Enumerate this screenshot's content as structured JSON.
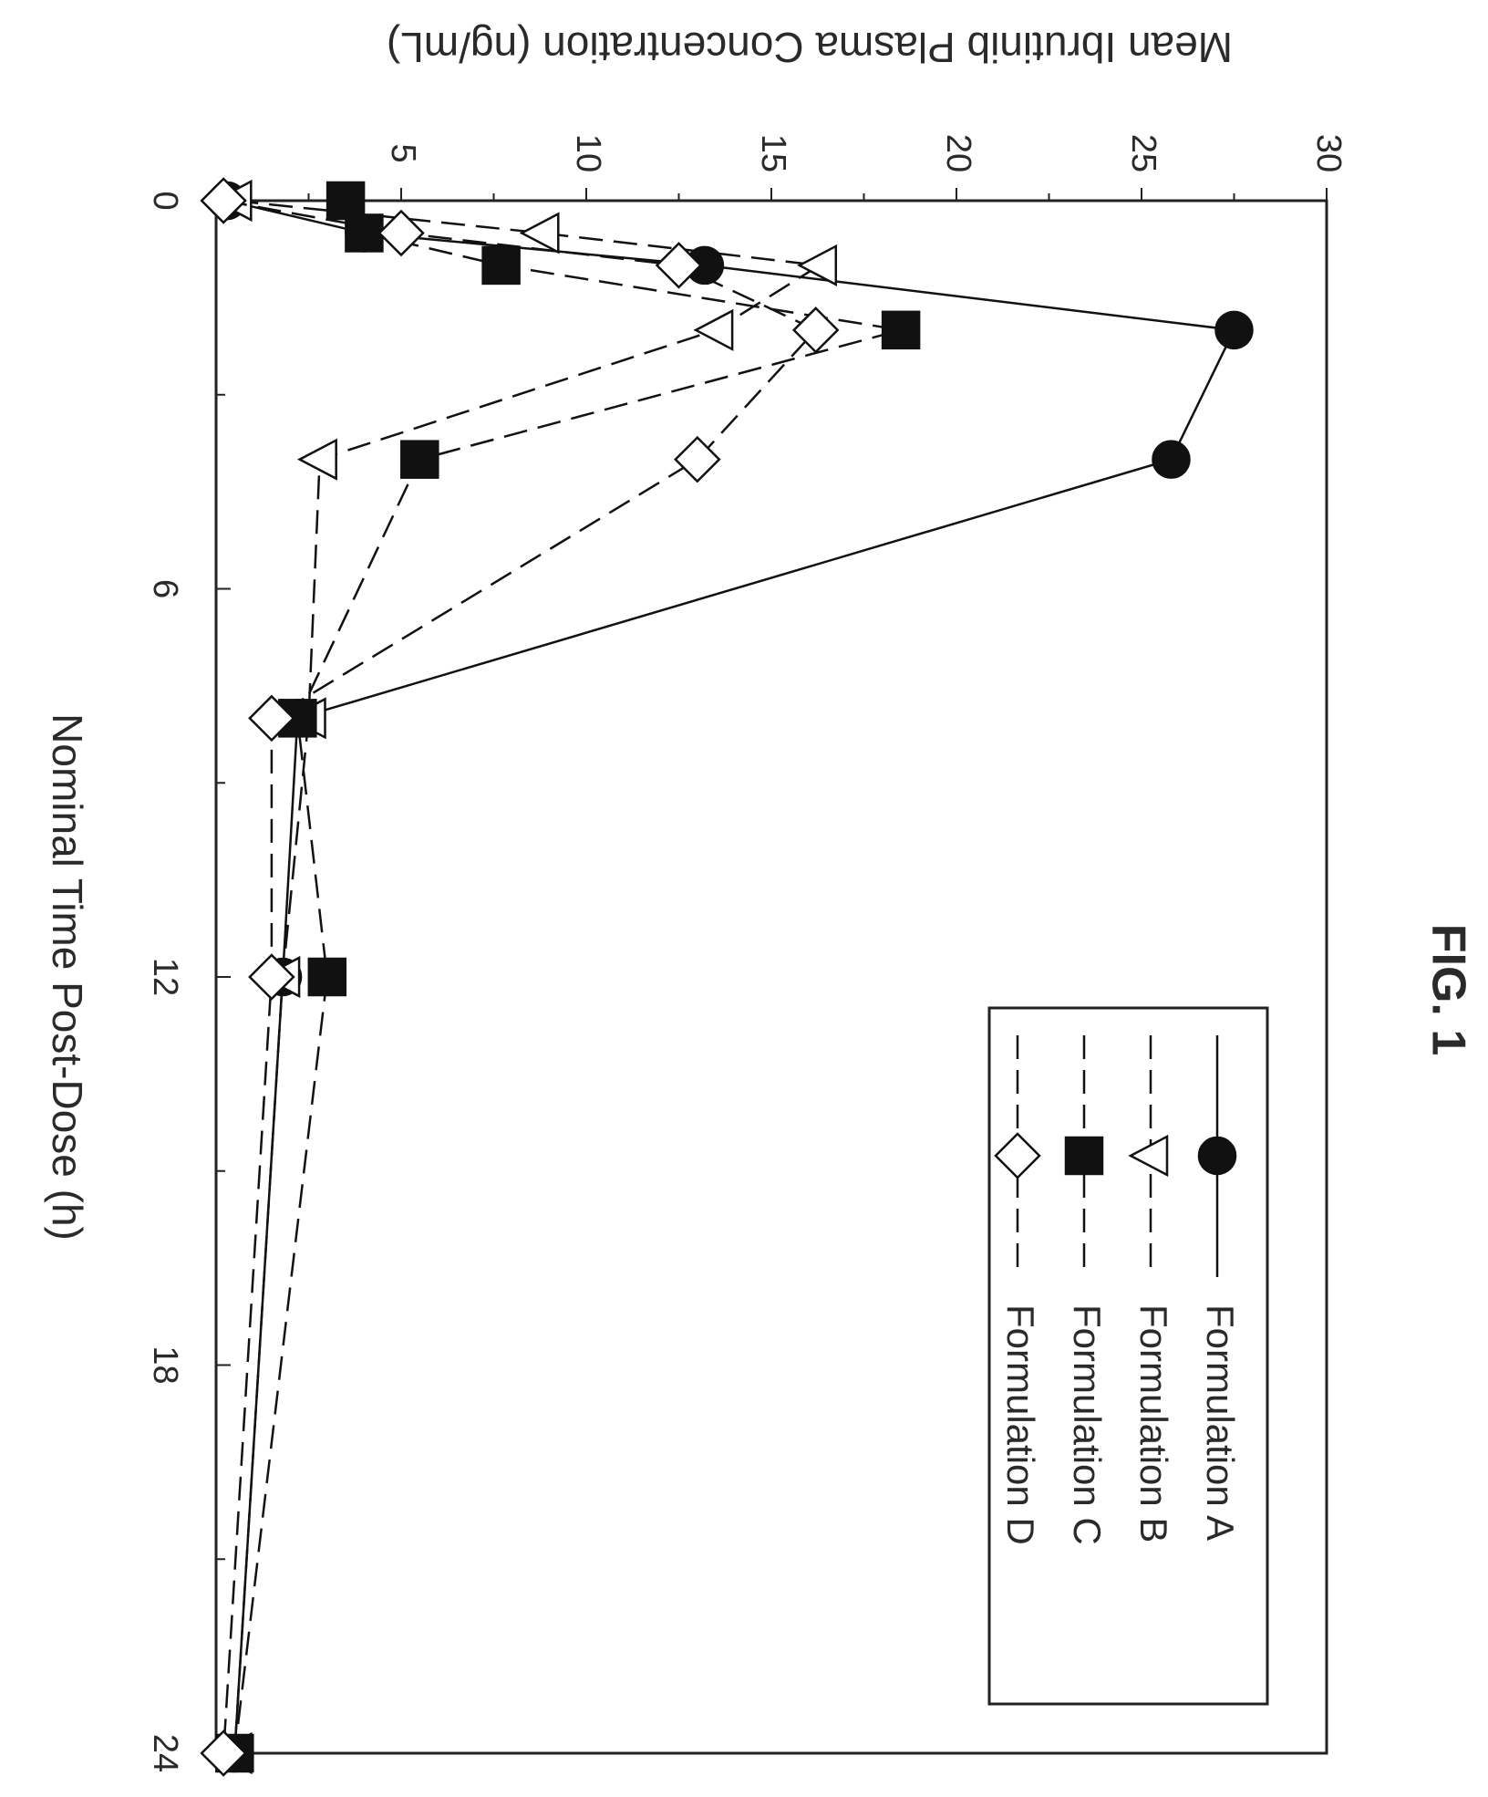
{
  "figure_label": "FIG. 1",
  "chart_data": {
    "type": "line",
    "title": "",
    "xlabel": "Nominal Time Post-Dose (h)",
    "ylabel": "Mean Ibrutinib Plasma Concentration (ng/mL)",
    "xlim": [
      0,
      24
    ],
    "ylim": [
      0,
      30
    ],
    "x_ticks": [
      "0",
      "6",
      "12",
      "18",
      "24"
    ],
    "y_ticks": [
      "5",
      "10",
      "15",
      "20",
      "25",
      "30"
    ],
    "grid": false,
    "legend_position": "top-right",
    "series": [
      {
        "name": "Formulation A",
        "line": "solid",
        "marker": "circle",
        "marker_fill": "#111111",
        "x": [
          0,
          0.5,
          1,
          2,
          4,
          8,
          12,
          24
        ],
        "y": [
          0.3,
          4.0,
          13.2,
          27.5,
          25.8,
          2.2,
          1.8,
          0.5
        ]
      },
      {
        "name": "Formulation B",
        "line": "dashed",
        "marker": "triangle-down",
        "marker_fill": "#ffffff",
        "x": [
          0,
          0.5,
          1,
          2,
          4,
          8,
          12,
          24
        ],
        "y": [
          0.5,
          8.8,
          16.3,
          13.5,
          2.8,
          2.5,
          1.8,
          0.5
        ]
      },
      {
        "name": "Formulation C",
        "line": "dashed",
        "marker": "square",
        "marker_fill": "#111111",
        "x": [
          0,
          0.5,
          1,
          2,
          4,
          8,
          12,
          24
        ],
        "y": [
          3.5,
          4.0,
          7.7,
          18.5,
          5.5,
          2.2,
          3.0,
          0.5
        ]
      },
      {
        "name": "Formulation D",
        "line": "dashed",
        "marker": "diamond",
        "marker_fill": "#ffffff",
        "x": [
          0,
          0.5,
          1,
          2,
          4,
          8,
          12,
          24
        ],
        "y": [
          0.2,
          5.0,
          12.5,
          16.2,
          13.0,
          1.5,
          1.5,
          0.2
        ]
      }
    ]
  }
}
